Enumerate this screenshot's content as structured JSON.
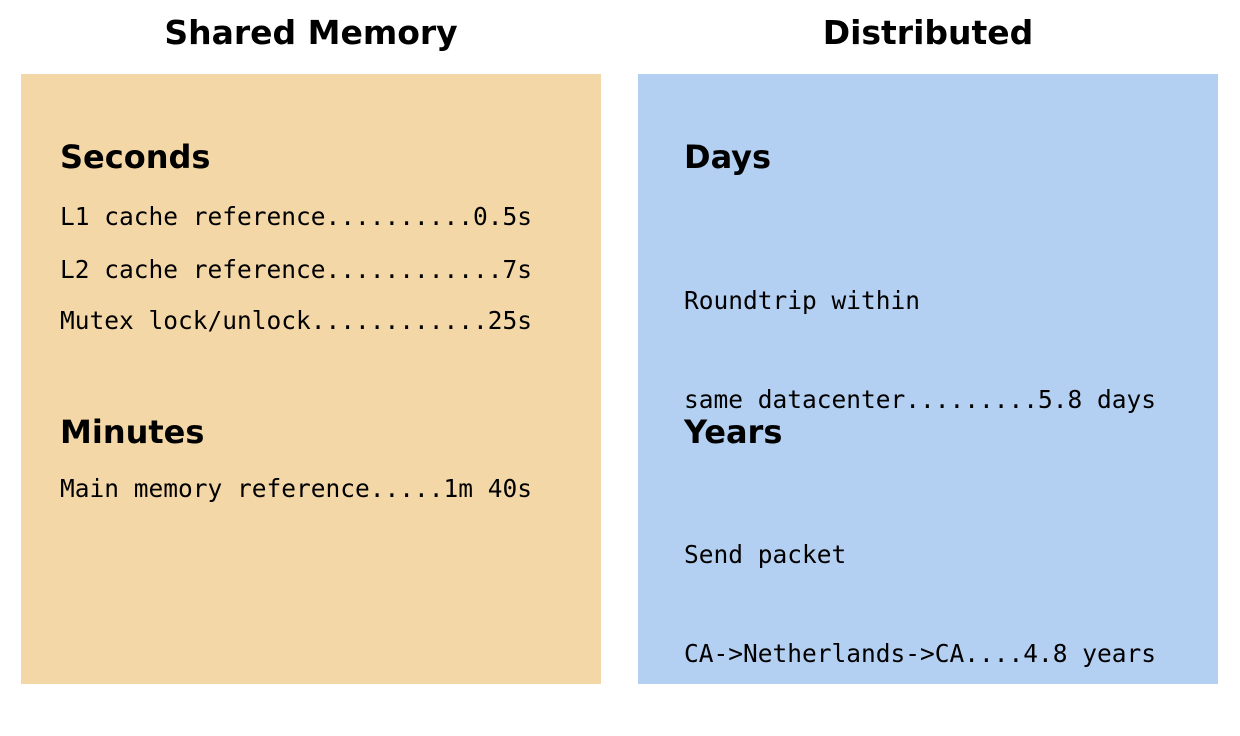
{
  "colors": {
    "shared_panel_bg": "#f4d7a6",
    "distributed_panel_bg": "#b3cff1",
    "text": "#000000"
  },
  "left": {
    "title": "Shared Memory",
    "sections": [
      {
        "heading": "Seconds",
        "rows": [
          "L1 cache reference..........0.5s",
          "L2 cache reference............7s",
          "Mutex lock/unlock............25s"
        ]
      },
      {
        "heading": "Minutes",
        "rows": [
          "Main memory reference.....1m 40s"
        ]
      }
    ]
  },
  "right": {
    "title": "Distributed",
    "sections": [
      {
        "heading": "Days",
        "entry": {
          "line1": "Roundtrip within",
          "line2": "same datacenter.........5.8 days"
        }
      },
      {
        "heading": "Years",
        "entry": {
          "line1": "Send packet",
          "line2": "CA->Netherlands->CA....4.8 years"
        }
      }
    ]
  }
}
